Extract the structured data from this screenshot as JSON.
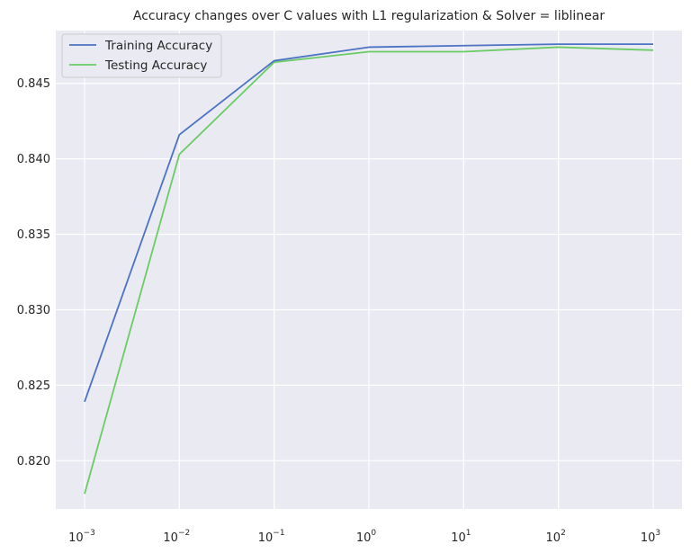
{
  "chart_data": {
    "type": "line",
    "title": "Accuracy changes over C values with L1 regularization & Solver = liblinear",
    "xlabel": "",
    "ylabel": "",
    "xscale": "log",
    "x": [
      0.001,
      0.01,
      0.1,
      1,
      10,
      100,
      1000
    ],
    "x_tick_labels": [
      {
        "base": "10",
        "exp": "−3"
      },
      {
        "base": "10",
        "exp": "−2"
      },
      {
        "base": "10",
        "exp": "−1"
      },
      {
        "base": "10",
        "exp": "0"
      },
      {
        "base": "10",
        "exp": "1"
      },
      {
        "base": "10",
        "exp": "2"
      },
      {
        "base": "10",
        "exp": "3"
      }
    ],
    "y_ticks": [
      "0.820",
      "0.825",
      "0.830",
      "0.835",
      "0.840",
      "0.845"
    ],
    "ylim": [
      0.8168,
      0.8485
    ],
    "grid": true,
    "legend_position": "top-left",
    "series": [
      {
        "name": "Training Accuracy",
        "color": "#4c72c4",
        "values": [
          0.8239,
          0.8416,
          0.8465,
          0.8474,
          0.8475,
          0.8476,
          0.8476
        ]
      },
      {
        "name": "Testing Accuracy",
        "color": "#6acc64",
        "values": [
          0.8178,
          0.8403,
          0.8464,
          0.8471,
          0.8471,
          0.8474,
          0.8472
        ]
      }
    ]
  }
}
